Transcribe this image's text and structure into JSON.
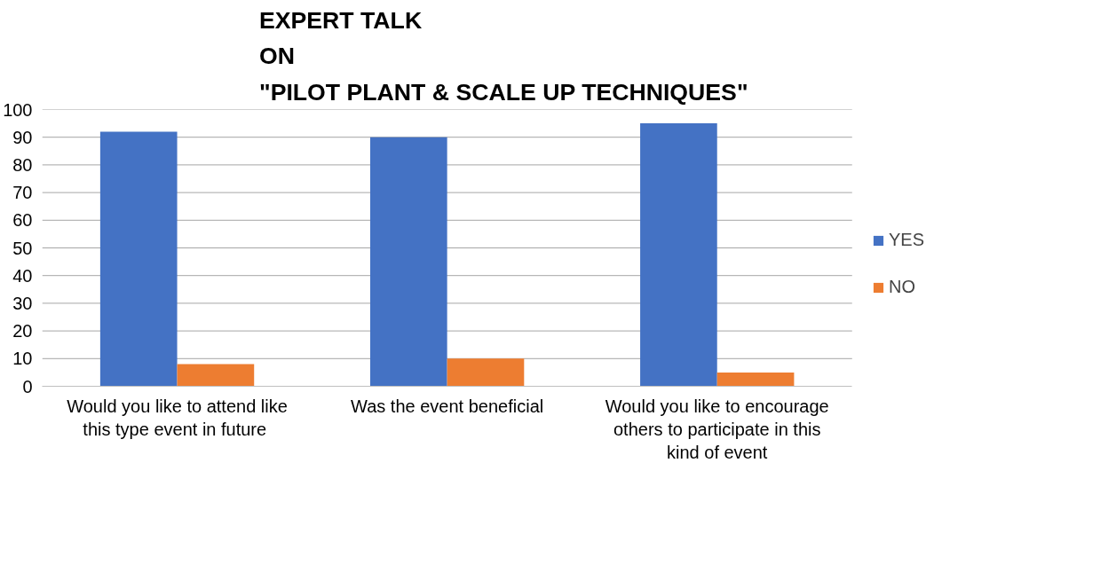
{
  "chart_data": {
    "type": "bar",
    "title": "EXPERT TALK\nON\n\"PILOT PLANT & SCALE UP TECHNIQUES\"",
    "categories": [
      "Would you like to attend like\nthis type event in  future",
      "Was the event beneficial",
      "Would you like to encourage\nothers to participate in this\nkind of event"
    ],
    "series": [
      {
        "name": "YES",
        "color": "#4472c4",
        "values": [
          92,
          90,
          95
        ]
      },
      {
        "name": "NO",
        "color": "#ed7d31",
        "values": [
          8,
          10,
          5
        ]
      }
    ],
    "ylim": [
      0,
      100
    ],
    "yticks": [
      0,
      10,
      20,
      30,
      40,
      50,
      60,
      70,
      80,
      90,
      100
    ],
    "grid": "y",
    "legend": "right"
  }
}
